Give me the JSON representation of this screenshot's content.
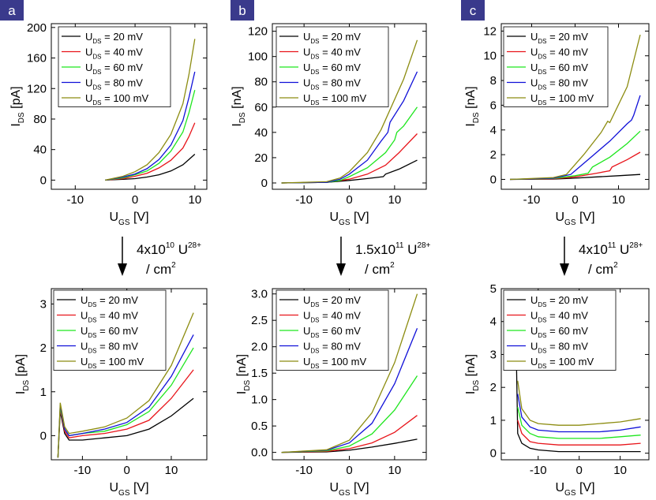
{
  "colors": {
    "badge": "#3a3a8c",
    "series": [
      "#000000",
      "#e8141a",
      "#1ee61e",
      "#1010d8",
      "#8c8c10"
    ]
  },
  "legend_labels": [
    "20 mV",
    "40 mV",
    "60 mV",
    "80 mV",
    "100 mV"
  ],
  "legend_prefix": "U",
  "legend_sub": "DS",
  "legend_eq": " = ",
  "x_axis": {
    "label": "U",
    "sub": "GS",
    "unit": " [V]"
  },
  "y_axis": {
    "label": "I",
    "sub": "DS"
  },
  "columns": [
    {
      "badge": "a",
      "dose_value": "4x10",
      "dose_exp": "10",
      "dose_ion": " U",
      "dose_ion_sup": "28+",
      "dose_unit": "/ cm",
      "dose_unit_sup": "2"
    },
    {
      "badge": "b",
      "dose_value": "1.5x10",
      "dose_exp": "11",
      "dose_ion": " U",
      "dose_ion_sup": "28+",
      "dose_unit": "/ cm",
      "dose_unit_sup": "2"
    },
    {
      "badge": "c",
      "dose_value": "4x10",
      "dose_exp": "11",
      "dose_ion": " U",
      "dose_ion_sup": "28+",
      "dose_unit": "/ cm",
      "dose_unit_sup": "2"
    }
  ],
  "chart_data": [
    {
      "panel": "a-top",
      "type": "line",
      "yunit": "[pA]",
      "title": "",
      "xlim": [
        -14,
        12
      ],
      "ylim": [
        -12,
        205
      ],
      "xticks": [
        -10,
        0,
        10
      ],
      "yticks": [
        0,
        40,
        80,
        120,
        160,
        200
      ],
      "series": [
        {
          "name": "UDS = 20 mV",
          "x": [
            -5,
            -2,
            0,
            2,
            4,
            6,
            8,
            9,
            10
          ],
          "y": [
            0,
            1,
            2,
            4,
            7,
            12,
            20,
            27,
            34
          ]
        },
        {
          "name": "UDS = 40 mV",
          "x": [
            -5,
            -2,
            0,
            2,
            4,
            6,
            8,
            9,
            10
          ],
          "y": [
            0,
            2,
            5,
            9,
            16,
            26,
            42,
            57,
            75
          ]
        },
        {
          "name": "UDS = 60 mV",
          "x": [
            -5,
            -2,
            0,
            2,
            4,
            6,
            8,
            9,
            10
          ],
          "y": [
            0,
            3,
            7,
            12,
            22,
            38,
            63,
            88,
            118
          ]
        },
        {
          "name": "UDS = 80 mV",
          "x": [
            -5,
            -2,
            0,
            2,
            4,
            6,
            8,
            9,
            10
          ],
          "y": [
            0,
            4,
            8,
            15,
            27,
            46,
            78,
            108,
            142
          ]
        },
        {
          "name": "UDS = 100 mV",
          "x": [
            -5,
            -2,
            0,
            2,
            4,
            6,
            8,
            9,
            10
          ],
          "y": [
            0,
            5,
            11,
            20,
            36,
            60,
            100,
            138,
            185
          ]
        }
      ]
    },
    {
      "panel": "b-top",
      "type": "line",
      "yunit": "[nA]",
      "title": "",
      "xlim": [
        -17,
        17
      ],
      "ylim": [
        -5,
        126
      ],
      "xticks": [
        -10,
        0,
        10
      ],
      "yticks": [
        0,
        20,
        40,
        60,
        80,
        100,
        120
      ],
      "series": [
        {
          "name": "UDS = 20 mV",
          "x": [
            -15,
            -5,
            0,
            4,
            7.5,
            8,
            11,
            15
          ],
          "y": [
            0,
            0.5,
            2,
            3.5,
            5,
            7,
            11,
            18
          ]
        },
        {
          "name": "UDS = 40 mV",
          "x": [
            -15,
            -5,
            0,
            4,
            8,
            11,
            15
          ],
          "y": [
            0,
            0.5,
            3,
            7,
            14,
            24,
            39
          ]
        },
        {
          "name": "UDS = 60 mV",
          "x": [
            -15,
            -5,
            -2,
            0,
            4,
            8,
            10,
            10.5,
            12,
            15
          ],
          "y": [
            0,
            0.5,
            2,
            5,
            12,
            24,
            34,
            40,
            45,
            60
          ]
        },
        {
          "name": "UDS = 80 mV",
          "x": [
            -15,
            -5,
            -2,
            0,
            4,
            7,
            8.5,
            9,
            12,
            15
          ],
          "y": [
            0,
            0.5,
            3,
            7,
            18,
            33,
            40,
            48,
            65,
            88
          ]
        },
        {
          "name": "UDS = 100 mV",
          "x": [
            -15,
            -5,
            -2,
            0,
            4,
            7,
            8,
            12,
            15
          ],
          "y": [
            0,
            1,
            4,
            9,
            24,
            42,
            50,
            82,
            113
          ]
        }
      ]
    },
    {
      "panel": "c-top",
      "type": "line",
      "yunit": "[nA]",
      "title": "",
      "xlim": [
        -17,
        17
      ],
      "ylim": [
        -0.8,
        12.6
      ],
      "xticks": [
        -10,
        0,
        10
      ],
      "yticks": [
        0,
        2,
        4,
        6,
        8,
        10,
        12
      ],
      "series": [
        {
          "name": "UDS = 20 mV",
          "x": [
            -15,
            -5,
            0,
            5,
            10,
            15
          ],
          "y": [
            0,
            0.02,
            0.1,
            0.2,
            0.3,
            0.4
          ]
        },
        {
          "name": "UDS = 40 mV",
          "x": [
            -15,
            -5,
            0,
            5,
            8,
            8.5,
            12,
            15
          ],
          "y": [
            0,
            0.05,
            0.2,
            0.5,
            0.7,
            1.0,
            1.6,
            2.2
          ]
        },
        {
          "name": "UDS = 60 mV",
          "x": [
            -15,
            -5,
            0,
            3,
            4,
            8,
            12,
            15
          ],
          "y": [
            0,
            0.08,
            0.3,
            0.5,
            1.0,
            1.8,
            2.9,
            3.9
          ]
        },
        {
          "name": "UDS = 80 mV",
          "x": [
            -15,
            -5,
            -1,
            0,
            4,
            8,
            12,
            13,
            13.5,
            15
          ],
          "y": [
            0,
            0.1,
            0.4,
            0.7,
            1.9,
            3.1,
            4.5,
            4.8,
            5.2,
            6.8
          ]
        },
        {
          "name": "UDS = 100 mV",
          "x": [
            -15,
            -5,
            -2,
            2,
            6,
            7.5,
            8,
            12,
            15
          ],
          "y": [
            0,
            0.15,
            0.4,
            2.0,
            3.8,
            4.7,
            4.6,
            7.5,
            11.7
          ]
        }
      ]
    },
    {
      "panel": "a-bottom",
      "type": "line",
      "yunit": "[pA]",
      "title": "",
      "xlim": [
        -17,
        18
      ],
      "ylim": [
        -0.55,
        3.35
      ],
      "xticks": [
        -10,
        0,
        10
      ],
      "yticks": [
        0,
        1,
        2,
        3
      ],
      "series": [
        {
          "name": "UDS = 20 mV",
          "x": [
            -15.5,
            -15,
            -14,
            -13,
            -10,
            -5,
            0,
            5,
            10,
            15
          ],
          "y": [
            -0.5,
            0.55,
            0.05,
            -0.1,
            -0.1,
            -0.05,
            0.0,
            0.15,
            0.45,
            0.85
          ]
        },
        {
          "name": "UDS = 40 mV",
          "x": [
            -15.5,
            -15,
            -14,
            -13,
            -10,
            -5,
            0,
            5,
            10,
            15
          ],
          "y": [
            -0.5,
            0.6,
            0.1,
            -0.05,
            0.0,
            0.05,
            0.15,
            0.35,
            0.85,
            1.5
          ]
        },
        {
          "name": "UDS = 60 mV",
          "x": [
            -15.5,
            -15,
            -14,
            -13,
            -10,
            -5,
            0,
            5,
            10,
            15
          ],
          "y": [
            -0.5,
            0.65,
            0.15,
            0.0,
            0.05,
            0.1,
            0.25,
            0.55,
            1.15,
            2.0
          ]
        },
        {
          "name": "UDS = 80 mV",
          "x": [
            -15.5,
            -15,
            -14,
            -13,
            -10,
            -5,
            0,
            5,
            10,
            15
          ],
          "y": [
            -0.5,
            0.7,
            0.15,
            0.0,
            0.05,
            0.15,
            0.3,
            0.65,
            1.35,
            2.3
          ]
        },
        {
          "name": "UDS = 100 mV",
          "x": [
            -15.5,
            -15,
            -14,
            -13,
            -10,
            -5,
            0,
            5,
            10,
            15
          ],
          "y": [
            -0.5,
            0.75,
            0.2,
            0.05,
            0.1,
            0.2,
            0.4,
            0.8,
            1.6,
            2.8
          ]
        }
      ]
    },
    {
      "panel": "b-bottom",
      "type": "line",
      "yunit": "[nA]",
      "title": "",
      "xlim": [
        -17,
        17
      ],
      "ylim": [
        -0.14,
        3.1
      ],
      "xticks": [
        -10,
        0,
        10
      ],
      "yticks": [
        0.0,
        0.5,
        1.0,
        1.5,
        2.0,
        2.5,
        3.0
      ],
      "series": [
        {
          "name": "UDS = 20 mV",
          "x": [
            -15,
            -5,
            0,
            5,
            10,
            15
          ],
          "y": [
            0,
            0.01,
            0.04,
            0.1,
            0.17,
            0.25
          ]
        },
        {
          "name": "UDS = 40 mV",
          "x": [
            -15,
            -5,
            0,
            5,
            10,
            15
          ],
          "y": [
            0,
            0.02,
            0.07,
            0.18,
            0.38,
            0.7
          ]
        },
        {
          "name": "UDS = 60 mV",
          "x": [
            -15,
            -5,
            0,
            5,
            10,
            15
          ],
          "y": [
            0,
            0.03,
            0.12,
            0.35,
            0.8,
            1.45
          ]
        },
        {
          "name": "UDS = 80 mV",
          "x": [
            -15,
            -5,
            0,
            5,
            10,
            15
          ],
          "y": [
            0,
            0.04,
            0.18,
            0.55,
            1.3,
            2.35
          ]
        },
        {
          "name": "UDS = 100 mV",
          "x": [
            -15,
            -5,
            0,
            5,
            10,
            15
          ],
          "y": [
            0,
            0.05,
            0.23,
            0.75,
            1.7,
            3.0
          ]
        }
      ]
    },
    {
      "panel": "c-bottom",
      "type": "line",
      "yunit": "[nA]",
      "title": "",
      "xlim": [
        -19,
        17
      ],
      "ylim": [
        -0.2,
        5.0
      ],
      "xticks": [
        -10,
        0,
        10
      ],
      "yticks": [
        0,
        1,
        2,
        3,
        4,
        5
      ],
      "series": [
        {
          "name": "UDS = 20 mV",
          "x": [
            -15.5,
            -15,
            -14,
            -12,
            -10,
            -5,
            0,
            5,
            10,
            15
          ],
          "y": [
            4.2,
            0.6,
            0.3,
            0.15,
            0.1,
            0.05,
            0.05,
            0.05,
            0.05,
            0.05
          ]
        },
        {
          "name": "UDS = 40 mV",
          "x": [
            -15,
            -14,
            -12,
            -10,
            -5,
            0,
            5,
            10,
            15
          ],
          "y": [
            1.0,
            0.6,
            0.35,
            0.3,
            0.25,
            0.25,
            0.25,
            0.25,
            0.3
          ]
        },
        {
          "name": "UDS = 60 mV",
          "x": [
            -15,
            -14,
            -12,
            -10,
            -5,
            0,
            5,
            10,
            15
          ],
          "y": [
            1.4,
            0.85,
            0.6,
            0.5,
            0.45,
            0.45,
            0.45,
            0.5,
            0.55
          ]
        },
        {
          "name": "UDS = 80 mV",
          "x": [
            -15,
            -14,
            -12,
            -10,
            -5,
            0,
            5,
            10,
            15
          ],
          "y": [
            1.8,
            1.1,
            0.8,
            0.7,
            0.65,
            0.65,
            0.65,
            0.7,
            0.8
          ]
        },
        {
          "name": "UDS = 100 mV",
          "x": [
            -15,
            -14,
            -12,
            -10,
            -5,
            0,
            5,
            10,
            15
          ],
          "y": [
            2.2,
            1.35,
            1.0,
            0.9,
            0.85,
            0.85,
            0.9,
            0.95,
            1.05
          ]
        }
      ]
    }
  ]
}
